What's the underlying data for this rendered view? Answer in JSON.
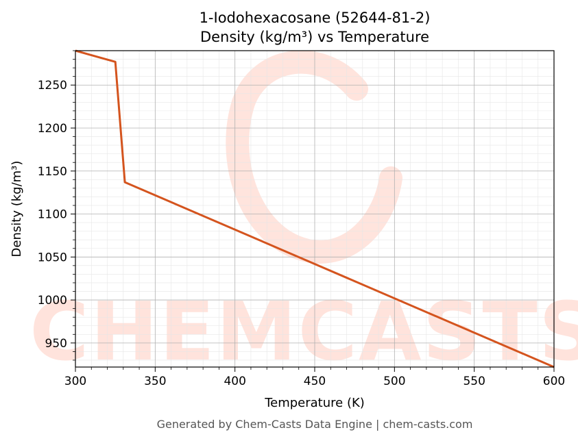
{
  "chart_data": {
    "type": "line",
    "title": "1-Iodohexacosane (52644-81-2)",
    "subtitle": "Density (kg/m³) vs Temperature",
    "xlabel": "Temperature (K)",
    "ylabel": "Density (kg/m³)",
    "xlim": [
      300,
      600
    ],
    "ylim": [
      922,
      1290
    ],
    "x_ticks": [
      300,
      350,
      400,
      450,
      500,
      550,
      600
    ],
    "y_ticks": [
      950,
      1000,
      1050,
      1100,
      1150,
      1200,
      1250
    ],
    "grid": "major and minor",
    "series": [
      {
        "color": "#d4541e",
        "x": [
          300,
          325,
          331,
          600
        ],
        "y": [
          1290,
          1277,
          1137,
          922
        ]
      }
    ],
    "watermark": "CHEMCASTS",
    "footer": "Generated by Chem-Casts Data Engine | chem-casts.com"
  }
}
